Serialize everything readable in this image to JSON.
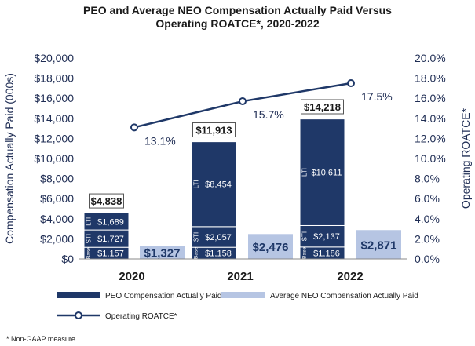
{
  "title_line1": "PEO and Average NEO Compensation Actually Paid Versus",
  "title_line2": "Operating ROATCE*, 2020-2022",
  "footnote": "* Non-GAAP measure.",
  "legend": {
    "peo": "PEO Compensation Actually Paid",
    "neo": "Average NEO Compensation Actually Paid",
    "roatce": "Operating ROATCE*"
  },
  "colors": {
    "peo": "#1f3868",
    "neo": "#b6c5e3",
    "line": "#1f3868",
    "text": "#1f2d54"
  },
  "chart_data": {
    "type": "bar",
    "title": "PEO and Average NEO Compensation Actually Paid Versus Operating ROATCE*, 2020-2022",
    "categories": [
      "2020",
      "2021",
      "2022"
    ],
    "ylabel": "Compensation Actually Paid (000s)",
    "ylabel_right": "Operating ROATCE*",
    "ylim": [
      0,
      20000
    ],
    "yticks": [
      "$0",
      "$2,000",
      "$4,000",
      "$6,000",
      "$8,000",
      "$10,000",
      "$12,000",
      "$14,000",
      "$16,000",
      "$18,000",
      "$20,000"
    ],
    "ylim_right": [
      0,
      20
    ],
    "yticks_right": [
      "0.0%",
      "2.0%",
      "4.0%",
      "6.0%",
      "8.0%",
      "10.0%",
      "12.0%",
      "14.0%",
      "16.0%",
      "18.0%",
      "20.0%"
    ],
    "peo_stack": [
      {
        "component": "Base",
        "values": [
          1157,
          1158,
          1186
        ],
        "labels": [
          "$1,157",
          "$1,158",
          "$1,186"
        ]
      },
      {
        "component": "STI",
        "values": [
          1727,
          2057,
          2137
        ],
        "labels": [
          "$1,727",
          "$2,057",
          "$2,137"
        ]
      },
      {
        "component": "LTI",
        "values": [
          1689,
          8454,
          10611
        ],
        "labels": [
          "$1,689",
          "$8,454",
          "$10,611"
        ]
      }
    ],
    "peo_totals": [
      4838,
      11913,
      14218
    ],
    "peo_total_labels": [
      "$4,838",
      "$11,913",
      "$14,218"
    ],
    "neo_values": [
      1327,
      2476,
      2871
    ],
    "neo_labels": [
      "$1,327",
      "$2,476",
      "$2,871"
    ],
    "roatce_values": [
      13.1,
      15.7,
      17.5
    ],
    "roatce_labels": [
      "13.1%",
      "15.7%",
      "17.5%"
    ]
  }
}
